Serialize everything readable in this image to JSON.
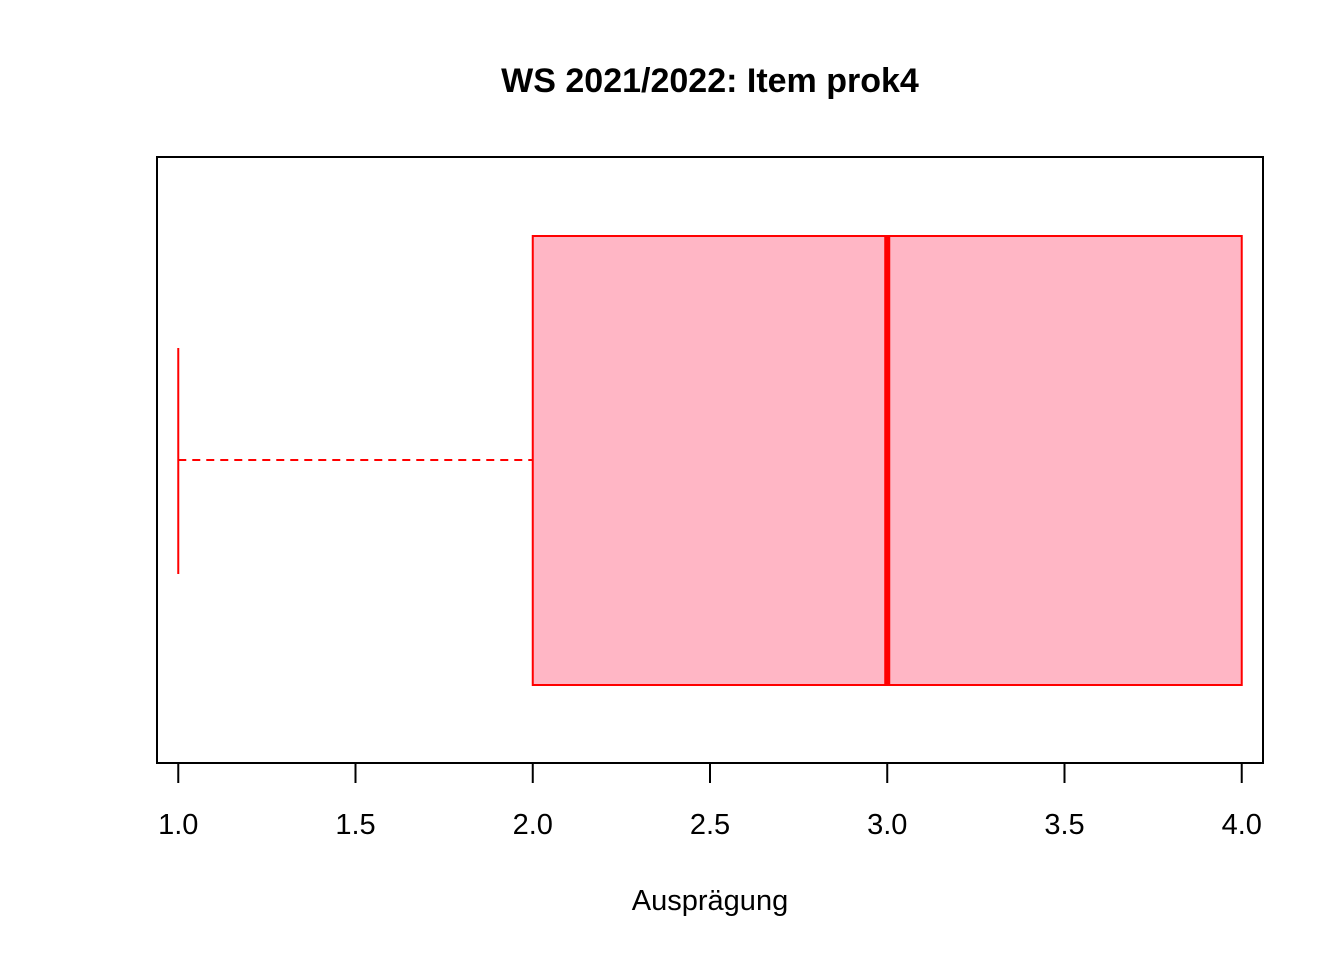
{
  "chart_data": {
    "type": "boxplot",
    "orientation": "horizontal",
    "title": "WS 2021/2022: Item prok4",
    "xlabel": "Ausprägung",
    "ylabel": "",
    "xlim": [
      0.94,
      4.06
    ],
    "ticks": [
      1.0,
      1.5,
      2.0,
      2.5,
      3.0,
      3.5,
      4.0
    ],
    "tick_labels": [
      "1.0",
      "1.5",
      "2.0",
      "2.5",
      "3.0",
      "3.5",
      "4.0"
    ],
    "box": {
      "whisker_low": 1.0,
      "q1": 2.0,
      "median": 3.0,
      "q3": 4.0,
      "whisker_high": 4.0
    },
    "colors": {
      "box_fill": "#ffb6c5",
      "box_stroke": "#ff0000",
      "frame": "#000000"
    }
  }
}
